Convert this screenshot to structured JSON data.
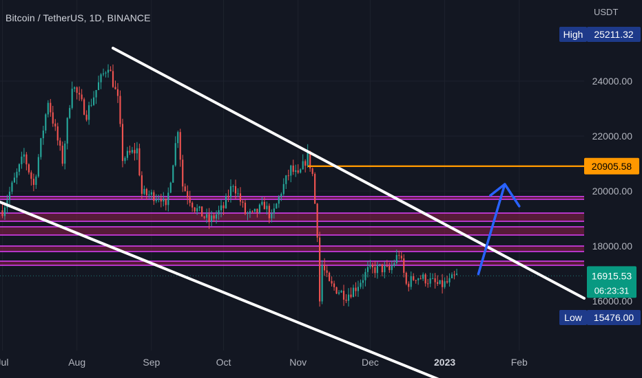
{
  "symbol_title": "Bitcoin / TetherUS, 1D, BINANCE",
  "currency": "USDT",
  "colors": {
    "background": "#131722",
    "up": "#26a69a",
    "down": "#ef5350",
    "trendline": "#ffffff",
    "resistance_line": "#ff9800",
    "zone_line": "#e040fb",
    "zone_fill": "#8e1f4a",
    "arrow": "#2962ff",
    "high_low_tag": "#1e3a8a",
    "price_tag": "#089981"
  },
  "badges": {
    "high_label": "High",
    "high_value": "25211.32",
    "low_label": "Low",
    "low_value": "15476.00",
    "level_value": "20905.58",
    "last_value": "16915.53",
    "countdown": "06:23:31",
    "hidden_tick": "16000.00"
  },
  "chart_data": {
    "type": "candlestick",
    "title": "Bitcoin / TetherUS, 1D, BINANCE",
    "unit": "USDT",
    "x_ticks": [
      "Jul",
      "Aug",
      "Sep",
      "Oct",
      "Nov",
      "Dec",
      "2023",
      "Feb"
    ],
    "y_ticks": [
      24000,
      22000,
      20000,
      18000
    ],
    "y_tick_labels": [
      "24000.00",
      "22000.00",
      "20000.00",
      "18000.00"
    ],
    "ylim": [
      14200,
      26200
    ],
    "xlim": [
      "2022-06-30",
      "2023-02-28"
    ],
    "price_anchors": [
      {
        "date": "2022-07-01",
        "price": 19300
      },
      {
        "date": "2022-07-06",
        "price": 20400
      },
      {
        "date": "2022-07-10",
        "price": 21300
      },
      {
        "date": "2022-07-14",
        "price": 20200
      },
      {
        "date": "2022-07-20",
        "price": 23300
      },
      {
        "date": "2022-07-26",
        "price": 21100
      },
      {
        "date": "2022-07-30",
        "price": 23900
      },
      {
        "date": "2022-08-05",
        "price": 22800
      },
      {
        "date": "2022-08-10",
        "price": 23900
      },
      {
        "date": "2022-08-14",
        "price": 24600
      },
      {
        "date": "2022-08-18",
        "price": 23300
      },
      {
        "date": "2022-08-20",
        "price": 21200
      },
      {
        "date": "2022-08-26",
        "price": 21500
      },
      {
        "date": "2022-08-28",
        "price": 19900
      },
      {
        "date": "2022-09-05",
        "price": 19800
      },
      {
        "date": "2022-09-07",
        "price": 19300
      },
      {
        "date": "2022-09-12",
        "price": 22300
      },
      {
        "date": "2022-09-14",
        "price": 20200
      },
      {
        "date": "2022-09-19",
        "price": 19400
      },
      {
        "date": "2022-09-25",
        "price": 18900
      },
      {
        "date": "2022-10-01",
        "price": 19400
      },
      {
        "date": "2022-10-05",
        "price": 20300
      },
      {
        "date": "2022-10-10",
        "price": 19200
      },
      {
        "date": "2022-10-13",
        "price": 19100
      },
      {
        "date": "2022-10-18",
        "price": 19500
      },
      {
        "date": "2022-10-21",
        "price": 19000
      },
      {
        "date": "2022-10-25",
        "price": 20000
      },
      {
        "date": "2022-10-29",
        "price": 20800
      },
      {
        "date": "2022-11-01",
        "price": 20500
      },
      {
        "date": "2022-11-05",
        "price": 21300
      },
      {
        "date": "2022-11-07",
        "price": 20600
      },
      {
        "date": "2022-11-09",
        "price": 18500
      },
      {
        "date": "2022-11-10",
        "price": 16000
      },
      {
        "date": "2022-11-11",
        "price": 17300
      },
      {
        "date": "2022-11-14",
        "price": 16600
      },
      {
        "date": "2022-11-21",
        "price": 16200
      },
      {
        "date": "2022-11-25",
        "price": 16500
      },
      {
        "date": "2022-11-30",
        "price": 17100
      },
      {
        "date": "2022-12-05",
        "price": 17200
      },
      {
        "date": "2022-12-09",
        "price": 17100
      },
      {
        "date": "2022-12-13",
        "price": 17750
      },
      {
        "date": "2022-12-16",
        "price": 16600
      },
      {
        "date": "2022-12-20",
        "price": 16900
      },
      {
        "date": "2022-12-24",
        "price": 16800
      },
      {
        "date": "2022-12-30",
        "price": 16550
      },
      {
        "date": "2023-01-03",
        "price": 16700
      },
      {
        "date": "2023-01-05",
        "price": 16850
      },
      {
        "date": "2023-01-06",
        "price": 16915.53
      }
    ],
    "resistance_level": 20905.58,
    "support_zones": [
      [
        19700,
        19800
      ],
      [
        18900,
        19200
      ],
      [
        18400,
        18700
      ],
      [
        17800,
        18000
      ],
      [
        17300,
        17450
      ]
    ],
    "channel": {
      "upper": [
        {
          "date": "2022-08-16",
          "price": 25200
        },
        {
          "date": "2023-02-28",
          "price": 16100
        }
      ],
      "lower": [
        {
          "date": "2022-06-30",
          "price": 19600
        },
        {
          "date": "2022-12-31",
          "price": 13100
        }
      ]
    },
    "projection_arrow": {
      "from": {
        "date": "2023-01-15",
        "price": 16980
      },
      "tip": {
        "date": "2023-01-26",
        "price": 20250
      },
      "head_left": {
        "date": "2023-01-20",
        "price": 19840
      },
      "head_right": {
        "date": "2023-02-01",
        "price": 19450
      }
    }
  }
}
